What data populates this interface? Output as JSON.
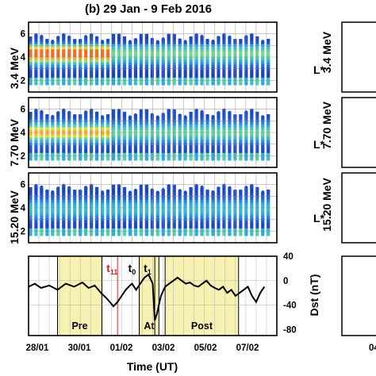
{
  "figure": {
    "title": "(b)  29 Jan - 9 Feb 2016",
    "xlabel": "Time (UT)",
    "x_ticks": [
      "28/01",
      "30/01",
      "01/02",
      "03/02",
      "05/02",
      "07/02"
    ],
    "right_edge_tick": "04"
  },
  "chart_data": [
    {
      "type": "heatmap",
      "panel": "3.4 MeV",
      "ylabel": "3.4 MeV",
      "right_label": "L*",
      "y_ticks": [
        "2",
        "4",
        "6"
      ],
      "ylim": [
        1,
        7
      ]
    },
    {
      "type": "heatmap",
      "panel": "7.70 MeV",
      "ylabel": "7.70 MeV",
      "right_label": "L*",
      "y_ticks": [
        "2",
        "4",
        "6"
      ],
      "ylim": [
        1,
        7
      ]
    },
    {
      "type": "heatmap",
      "panel": "15.20 MeV",
      "ylabel": "15.20 MeV",
      "right_label": "L*",
      "y_ticks": [
        "2",
        "4",
        "6"
      ],
      "ylim": [
        1,
        7
      ]
    },
    {
      "type": "line",
      "panel": "Dst",
      "ylabel": "Dst (nT)",
      "y_ticks": [
        "40",
        "0",
        "-40",
        "-80"
      ],
      "ylim": [
        -90,
        40
      ],
      "x_start": "28/01",
      "series": [
        {
          "x_days": [
            0,
            0.3,
            0.6,
            1.0,
            1.4,
            1.8,
            2.2,
            2.6,
            2.9,
            3.2,
            3.5,
            3.8,
            4.1,
            4.3,
            4.5,
            4.7,
            4.9,
            5.0,
            5.2,
            5.4,
            5.6,
            5.8,
            6.0,
            6.1,
            6.2,
            6.4,
            6.6,
            6.8,
            7.0,
            7.2,
            7.4,
            7.6,
            7.8,
            8.0,
            8.2,
            8.4,
            8.6,
            8.8,
            9.0,
            9.2,
            9.4,
            9.6,
            9.8,
            10.0,
            10.2,
            10.4,
            10.6,
            10.8,
            11.0,
            11.2,
            11.4
          ],
          "values": [
            -10,
            -5,
            -12,
            -8,
            -15,
            -5,
            -10,
            -3,
            -12,
            -8,
            -20,
            -30,
            -42,
            -35,
            -25,
            -15,
            -8,
            -5,
            -15,
            -5,
            5,
            10,
            -5,
            -65,
            -55,
            -25,
            -10,
            -5,
            0,
            5,
            0,
            -5,
            -3,
            -8,
            -10,
            -5,
            0,
            -8,
            -12,
            -15,
            -10,
            -20,
            -15,
            -25,
            -20,
            -15,
            -10,
            -25,
            -35,
            -20,
            -10
          ]
        }
      ],
      "shaded_intervals": [
        {
          "label": "Pre",
          "start_days": 1.4,
          "end_days": 3.55
        },
        {
          "label": "At",
          "start_days": 5.35,
          "end_days": 6.3
        },
        {
          "label": "Post",
          "start_days": 6.6,
          "end_days": 10.15
        }
      ],
      "markers": [
        {
          "label": "t",
          "sub": "11",
          "color": "#e02020",
          "x_days": 4.3
        },
        {
          "label": "t",
          "sub": "0",
          "color": "#000000",
          "x_days": 5.35
        },
        {
          "label": "t",
          "sub": "1",
          "color": "#000000",
          "x_days": 6.1
        }
      ]
    }
  ]
}
